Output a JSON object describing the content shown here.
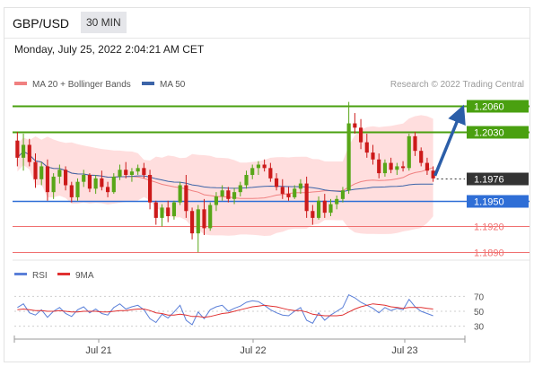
{
  "header": {
    "symbol": "GBP/USD",
    "timeframe": "30 MIN"
  },
  "datetime": "Monday, July 25, 2022 2:04:21 AM CET",
  "legend": {
    "bollinger": "MA 20 + Bollinger Bands",
    "ma50": "MA 50",
    "copyright": "Research © 2022 Trading Central"
  },
  "rsi_legend": {
    "rsi": "RSI",
    "ma9": "9MA"
  },
  "colors": {
    "candle_up": "#58a618",
    "candle_down": "#cc1a1a",
    "bollinger_fill": "#ffd3d3",
    "ma20": "#f08080",
    "ma50": "#3c64a8",
    "resistance": "#4aa010",
    "support_blue": "#2f6ed6",
    "support_red": "#f07070",
    "arrow": "#2b5ea8",
    "rsi": "#5a7fd8",
    "rsi_ma": "#e03030"
  },
  "chart_data": [
    {
      "type": "candlestick",
      "title": "GBP/USD 30 MIN",
      "x_tick_labels": [
        "Jul 21",
        "Jul 22",
        "Jul 23"
      ],
      "ylim": [
        1.1885,
        1.2075
      ],
      "levels": [
        {
          "value": 1.206,
          "label": "1.2060",
          "kind": "resistance"
        },
        {
          "value": 1.203,
          "label": "1.2030",
          "kind": "resistance"
        },
        {
          "value": 1.1976,
          "label": "1.1976",
          "kind": "last_price"
        },
        {
          "value": 1.195,
          "label": "1.1950",
          "kind": "support_blue"
        },
        {
          "value": 1.192,
          "label": "1.1920",
          "kind": "support"
        },
        {
          "value": 1.189,
          "label": "1.1890",
          "kind": "support"
        }
      ],
      "forecast_arrow": {
        "from": 1.1976,
        "to": 1.206
      },
      "ohlc": [
        [
          1.202,
          1.203,
          1.199,
          1.2
        ],
        [
          1.2,
          1.2028,
          1.1985,
          1.2015
        ],
        [
          1.2015,
          1.2022,
          1.199,
          1.1995
        ],
        [
          1.1995,
          1.2005,
          1.1965,
          1.1975
        ],
        [
          1.1975,
          1.1995,
          1.1968,
          1.199
        ],
        [
          1.199,
          1.1998,
          1.195,
          1.196
        ],
        [
          1.196,
          1.1982,
          1.1952,
          1.1978
        ],
        [
          1.1978,
          1.1992,
          1.197,
          1.1986
        ],
        [
          1.1986,
          1.199,
          1.1962,
          1.1968
        ],
        [
          1.1968,
          1.1972,
          1.1948,
          1.1954
        ],
        [
          1.1954,
          1.1976,
          1.195,
          1.1972
        ],
        [
          1.1972,
          1.1986,
          1.1966,
          1.198
        ],
        [
          1.198,
          1.1982,
          1.196,
          1.1964
        ],
        [
          1.1964,
          1.198,
          1.1958,
          1.1976
        ],
        [
          1.1976,
          1.1985,
          1.1962,
          1.1966
        ],
        [
          1.1966,
          1.1972,
          1.1954,
          1.196
        ],
        [
          1.196,
          1.1982,
          1.1958,
          1.1978
        ],
        [
          1.1978,
          1.1992,
          1.1974,
          1.1986
        ],
        [
          1.1986,
          1.1995,
          1.1976,
          1.198
        ],
        [
          1.198,
          1.1988,
          1.1972,
          1.1984
        ],
        [
          1.1984,
          1.1992,
          1.198,
          1.1988
        ],
        [
          1.1988,
          1.1994,
          1.1976,
          1.198
        ],
        [
          1.198,
          1.1986,
          1.194,
          1.1948
        ],
        [
          1.1948,
          1.195,
          1.1922,
          1.193
        ],
        [
          1.193,
          1.1946,
          1.192,
          1.1942
        ],
        [
          1.1942,
          1.195,
          1.1925,
          1.1932
        ],
        [
          1.1932,
          1.195,
          1.1928,
          1.1948
        ],
        [
          1.1948,
          1.1972,
          1.1945,
          1.1968
        ],
        [
          1.1968,
          1.198,
          1.193,
          1.1938
        ],
        [
          1.1938,
          1.1942,
          1.1905,
          1.1912
        ],
        [
          1.1912,
          1.1945,
          1.189,
          1.194
        ],
        [
          1.194,
          1.1952,
          1.191,
          1.1918
        ],
        [
          1.1918,
          1.1948,
          1.1915,
          1.1945
        ],
        [
          1.1945,
          1.196,
          1.1938,
          1.1955
        ],
        [
          1.1955,
          1.1968,
          1.195,
          1.1962
        ],
        [
          1.1962,
          1.1966,
          1.1948,
          1.1952
        ],
        [
          1.1952,
          1.1965,
          1.1946,
          1.196
        ],
        [
          1.196,
          1.1972,
          1.1955,
          1.1968
        ],
        [
          1.1968,
          1.1985,
          1.1964,
          1.198
        ],
        [
          1.198,
          1.1992,
          1.1975,
          1.1988
        ],
        [
          1.1988,
          1.1996,
          1.198,
          1.1992
        ],
        [
          1.1992,
          1.1998,
          1.1984,
          1.1988
        ],
        [
          1.1988,
          1.1994,
          1.1972,
          1.1976
        ],
        [
          1.1976,
          1.1982,
          1.1962,
          1.1966
        ],
        [
          1.1966,
          1.1975,
          1.1952,
          1.1958
        ],
        [
          1.1958,
          1.1966,
          1.195,
          1.1954
        ],
        [
          1.1954,
          1.1968,
          1.1952,
          1.1964
        ],
        [
          1.1964,
          1.1975,
          1.1958,
          1.197
        ],
        [
          1.197,
          1.1978,
          1.193,
          1.1938
        ],
        [
          1.1938,
          1.1945,
          1.1922,
          1.193
        ],
        [
          1.193,
          1.1955,
          1.1928,
          1.195
        ],
        [
          1.195,
          1.1958,
          1.193,
          1.1936
        ],
        [
          1.1936,
          1.1952,
          1.1932,
          1.1946
        ],
        [
          1.1946,
          1.1956,
          1.194,
          1.1952
        ],
        [
          1.1952,
          1.1966,
          1.1948,
          1.1962
        ],
        [
          1.1962,
          1.2065,
          1.1958,
          1.204
        ],
        [
          1.204,
          1.2052,
          1.2028,
          1.2035
        ],
        [
          1.2035,
          1.2045,
          1.201,
          1.2018
        ],
        [
          1.2018,
          1.2028,
          1.2,
          1.2006
        ],
        [
          1.2006,
          1.2015,
          1.1992,
          1.1998
        ],
        [
          1.1998,
          1.2005,
          1.1976,
          1.1982
        ],
        [
          1.1982,
          1.1998,
          1.1978,
          1.1994
        ],
        [
          1.1994,
          1.2,
          1.1982,
          1.1986
        ],
        [
          1.1986,
          1.1994,
          1.198,
          1.199
        ],
        [
          1.199,
          1.1996,
          1.1984,
          1.1988
        ],
        [
          1.1988,
          1.2028,
          1.1985,
          1.2025
        ],
        [
          1.2025,
          1.203,
          1.2002,
          1.2008
        ],
        [
          1.2008,
          1.2012,
          1.199,
          1.1994
        ],
        [
          1.1994,
          1.2,
          1.198,
          1.1985
        ],
        [
          1.1985,
          1.199,
          1.1972,
          1.1976
        ]
      ]
    },
    {
      "type": "line",
      "title": "RSI",
      "y_tick_labels": [
        "70",
        "50",
        "30"
      ],
      "ylim": [
        20,
        80
      ],
      "series": [
        {
          "name": "RSI",
          "values": [
            55,
            60,
            48,
            45,
            52,
            42,
            50,
            55,
            47,
            43,
            52,
            56,
            48,
            53,
            47,
            45,
            55,
            60,
            53,
            56,
            58,
            52,
            40,
            35,
            46,
            41,
            49,
            58,
            38,
            32,
            49,
            40,
            52,
            56,
            58,
            50,
            54,
            57,
            62,
            64,
            63,
            58,
            52,
            48,
            45,
            44,
            50,
            55,
            38,
            34,
            48,
            38,
            45,
            50,
            55,
            72,
            68,
            62,
            58,
            54,
            48,
            55,
            51,
            54,
            52,
            66,
            56,
            50,
            47,
            44
          ]
        },
        {
          "name": "9MA",
          "values": [
            52,
            53,
            52,
            51,
            51,
            50,
            50,
            51,
            50,
            49,
            49,
            50,
            50,
            50,
            49,
            49,
            50,
            51,
            51,
            52,
            53,
            53,
            51,
            48,
            47,
            45,
            45,
            46,
            45,
            43,
            43,
            42,
            43,
            45,
            47,
            48,
            50,
            52,
            54,
            56,
            57,
            58,
            57,
            56,
            54,
            52,
            51,
            51,
            49,
            46,
            45,
            44,
            44,
            44,
            45,
            49,
            53,
            56,
            58,
            60,
            59,
            58,
            56,
            55,
            54,
            55,
            55,
            55,
            54,
            53
          ]
        }
      ]
    }
  ]
}
